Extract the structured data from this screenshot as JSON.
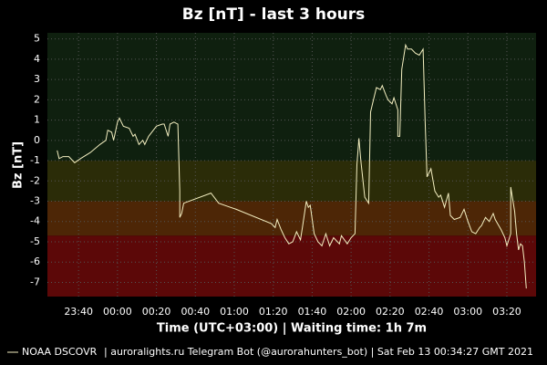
{
  "chart_data": {
    "type": "line",
    "title": "Bz [nT] - last 3 hours",
    "ylabel": "Bz [nT]",
    "xlabel": "Time (UTC+03:00)  |  Waiting time: 1h 7m",
    "footer": "| auroralights.ru Telegram Bot (@aurorahunters_bot) | Sat Feb 13 00:34:27 GMT 2021",
    "xlim": [
      "23:24",
      "03:35"
    ],
    "xticks": [
      "23:40",
      "00:00",
      "00:20",
      "00:40",
      "01:00",
      "01:20",
      "01:40",
      "02:00",
      "02:20",
      "02:40",
      "03:00",
      "03:20"
    ],
    "ylim": [
      -7.7,
      5.3
    ],
    "yticks": [
      5,
      4,
      3,
      2,
      1,
      0,
      -1,
      -2,
      -3,
      -4,
      -5,
      -6,
      -7
    ],
    "grid": true,
    "bands": [
      {
        "from": 5.3,
        "to": -1,
        "color": "#0f200f"
      },
      {
        "from": -1,
        "to": -3,
        "color": "#2b2c08"
      },
      {
        "from": -3,
        "to": -4.7,
        "color": "#4d2606"
      },
      {
        "from": -4.7,
        "to": -7.7,
        "color": "#5c0808"
      }
    ],
    "x": [
      "23:29",
      "23:30",
      "23:32",
      "23:35",
      "23:37",
      "23:38",
      "23:41",
      "23:46",
      "23:51",
      "23:54",
      "23:55",
      "23:57",
      "23:58",
      "00:00",
      "00:01",
      "00:03",
      "00:06",
      "00:08",
      "00:09",
      "00:11",
      "00:13",
      "00:14",
      "00:16",
      "00:20",
      "00:23",
      "00:24",
      "00:26",
      "00:27",
      "00:29",
      "00:31",
      "00:32",
      "00:32",
      "00:33",
      "00:34",
      "00:48",
      "00:52",
      "01:01",
      "01:19",
      "01:21",
      "01:22",
      "01:24",
      "01:26",
      "01:28",
      "01:30",
      "01:32",
      "01:34",
      "01:35",
      "01:37",
      "01:38",
      "01:39",
      "01:41",
      "01:43",
      "01:45",
      "01:47",
      "01:49",
      "01:51",
      "01:54",
      "01:55",
      "01:58",
      "02:00",
      "02:02",
      "02:03",
      "02:04",
      "02:05",
      "02:07",
      "02:09",
      "02:10",
      "02:11",
      "02:13",
      "02:15",
      "02:16",
      "02:18",
      "02:19",
      "02:21",
      "02:22",
      "02:24",
      "02:24",
      "02:25",
      "02:26",
      "02:28",
      "02:29",
      "02:31",
      "02:33",
      "02:35",
      "02:37",
      "02:38",
      "02:39",
      "02:41",
      "02:43",
      "02:45",
      "02:46",
      "02:48",
      "02:50",
      "02:51",
      "02:53",
      "02:56",
      "02:58",
      "03:00",
      "03:02",
      "03:04",
      "03:06",
      "03:07",
      "03:09",
      "03:11",
      "03:13",
      "03:14",
      "03:17",
      "03:19",
      "03:20",
      "03:22",
      "03:22",
      "03:24",
      "03:25",
      "03:26",
      "03:27",
      "03:28",
      "03:29",
      "03:30"
    ],
    "series": [
      {
        "name": "NOAA DSCOVR",
        "color": "#f3eec0",
        "values": [
          -0.5,
          -0.9,
          -0.8,
          -0.8,
          -1.0,
          -1.1,
          -0.9,
          -0.6,
          -0.2,
          0.0,
          0.5,
          0.4,
          0.0,
          0.9,
          1.1,
          0.7,
          0.6,
          0.2,
          0.3,
          -0.2,
          0.0,
          -0.2,
          0.2,
          0.7,
          0.8,
          0.8,
          0.2,
          0.8,
          0.9,
          0.8,
          -2.5,
          -3.8,
          -3.6,
          -3.1,
          -2.6,
          -3.1,
          -3.4,
          -4.1,
          -4.3,
          -3.9,
          -4.4,
          -4.8,
          -5.1,
          -5.0,
          -4.5,
          -4.9,
          -4.3,
          -3.0,
          -3.3,
          -3.2,
          -4.6,
          -5.0,
          -5.2,
          -4.6,
          -5.2,
          -4.8,
          -5.1,
          -4.7,
          -5.1,
          -4.8,
          -4.6,
          -1.2,
          0.1,
          -1.0,
          -2.8,
          -3.1,
          1.4,
          1.8,
          2.6,
          2.5,
          2.7,
          2.2,
          2.0,
          1.8,
          2.1,
          1.5,
          0.2,
          0.2,
          3.5,
          4.7,
          4.5,
          4.5,
          4.3,
          4.2,
          4.5,
          1.0,
          -1.8,
          -1.4,
          -2.5,
          -2.8,
          -2.7,
          -3.3,
          -2.6,
          -3.7,
          -3.9,
          -3.8,
          -3.4,
          -4.0,
          -4.5,
          -4.6,
          -4.3,
          -4.2,
          -3.8,
          -4.0,
          -3.6,
          -3.9,
          -4.4,
          -4.8,
          -5.2,
          -4.6,
          -2.3,
          -3.5,
          -4.6,
          -5.4,
          -5.1,
          -5.2,
          -6.0,
          -7.3
        ]
      }
    ]
  }
}
